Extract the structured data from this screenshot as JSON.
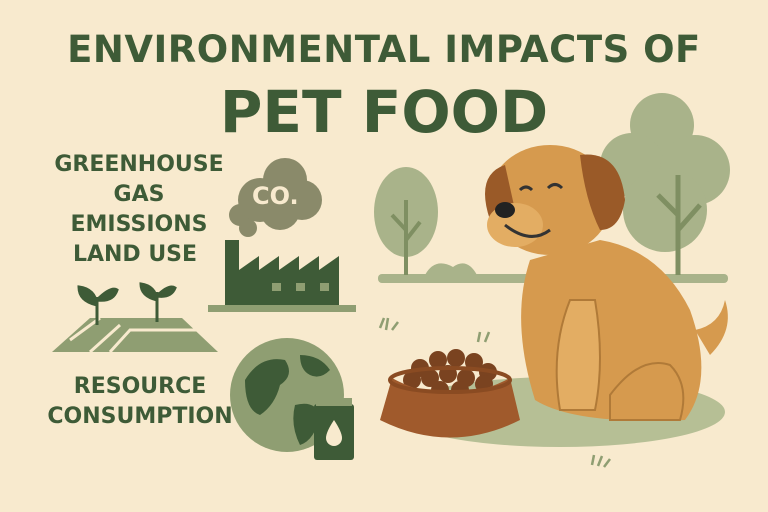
{
  "title": {
    "line1": "ENVIRONMENTAL IMPACTS OF",
    "line2": "PET FOOD"
  },
  "impacts": [
    {
      "label": "GREENHOUSE GAS EMISSIONS",
      "line1": "GREENHOUSE",
      "line2": "GAS EMISSIONS",
      "icon": "factory-icon"
    },
    {
      "label": "LAND USE",
      "icon": "farmland-sprouts-icon"
    },
    {
      "label": "RESOURCE CONSUMPTION",
      "line1": "RESOURCE",
      "line2": "CONSUMPTION",
      "icon": "globe-oil-can-icon"
    }
  ],
  "cloud_text": "CO.",
  "colors": {
    "background": "#f8eace",
    "dark_green": "#3e5b37",
    "sage": "#8f9e72",
    "dog": "#d69a4e",
    "bowl": "#a05a2c"
  }
}
